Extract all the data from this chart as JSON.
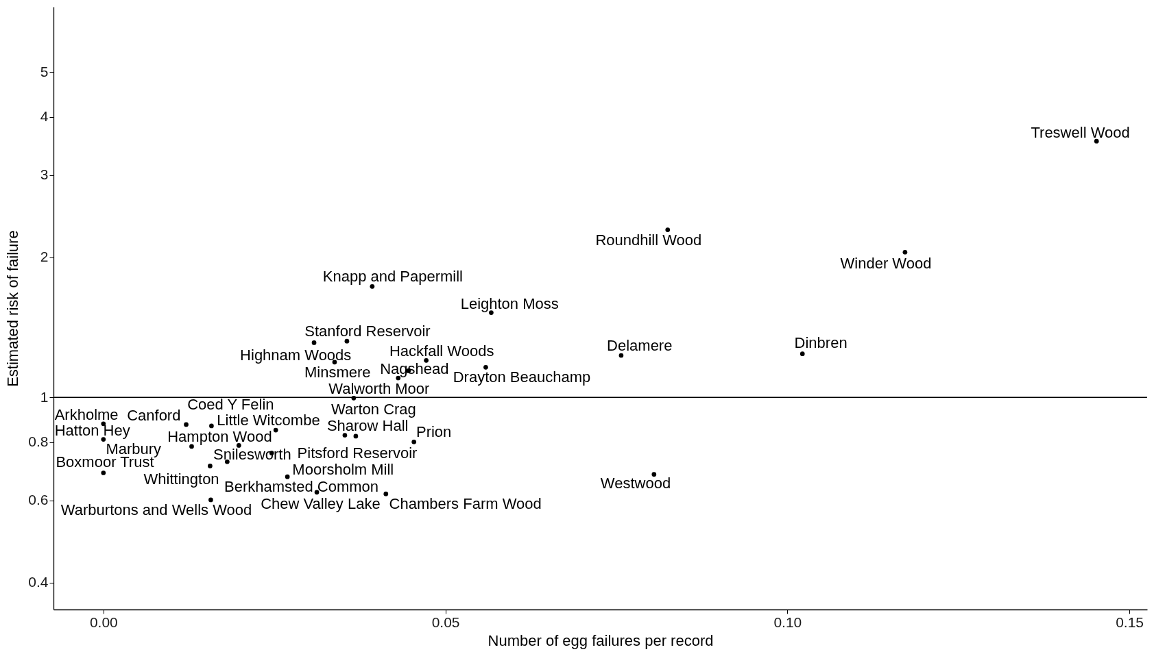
{
  "chart_data": {
    "type": "scatter",
    "xlabel": "Number of egg failures per record",
    "ylabel": "Estimated risk of failure",
    "log": true,
    "grid": false,
    "xlim": [
      -0.0073,
      0.1526
    ],
    "ylim": [
      0.35,
      6.9
    ],
    "xticks": [
      {
        "value": 0,
        "label": "0.00"
      },
      0.05,
      {
        "value": 0.1,
        "label": "0.10"
      },
      {
        "value": 0.15,
        "label": "0.15"
      }
    ],
    "yticks": [
      0.4,
      0.6,
      0.8,
      1,
      2,
      3,
      4,
      5
    ],
    "ref_lines": [
      {
        "axis": "y",
        "value": 1,
        "color": "#000000"
      }
    ],
    "series": [
      {
        "color": "#000000",
        "x": [
          0.1452,
          0.0825,
          0.1172,
          0.0393,
          0.0567,
          0.0356,
          0.0308,
          0.0338,
          0.0472,
          0.0446,
          0.0431,
          0.0559,
          0.0757,
          0.1022,
          0.0366,
          0.0,
          0.0121,
          0.0158,
          0.0252,
          0.0353,
          0.0,
          0.0198,
          0.0454,
          0.0129,
          0.0369,
          0.0181,
          0.0,
          0.0246,
          0.0156,
          0.0805,
          0.0269,
          0.0312,
          0.0413,
          0.0157
        ],
        "values": [
          3.55,
          2.29,
          2.05,
          1.73,
          1.52,
          1.32,
          1.31,
          1.19,
          1.2,
          1.14,
          1.1,
          1.16,
          1.23,
          1.24,
          0.996,
          0.877,
          0.874,
          0.868,
          0.85,
          0.829,
          0.812,
          0.788,
          0.802,
          0.784,
          0.825,
          0.727,
          0.688,
          0.759,
          0.712,
          0.683,
          0.675,
          0.625,
          0.62,
          0.602
        ]
      }
    ],
    "annotations": [
      {
        "text": "Treswell Wood",
        "x": 0.1452,
        "y": 3.55
      },
      {
        "text": "Roundhill Wood",
        "x": 0.0825,
        "y": 2.29
      },
      {
        "text": "Winder Wood",
        "x": 0.1172,
        "y": 2.05
      },
      {
        "text": "Knapp and Papermill",
        "x": 0.0393,
        "y": 1.73
      },
      {
        "text": "Leighton Moss",
        "x": 0.0567,
        "y": 1.52
      },
      {
        "text": "Stanford Reservoir",
        "x": 0.0356,
        "y": 1.32
      },
      {
        "text": "Highnam Woods",
        "x": 0.0308,
        "y": 1.31
      },
      {
        "text": "Minsmere",
        "x": 0.0338,
        "y": 1.19
      },
      {
        "text": "Hackfall Woods",
        "x": 0.0472,
        "y": 1.2
      },
      {
        "text": "Nagshead",
        "x": 0.0446,
        "y": 1.14
      },
      {
        "text": "Walworth Moor",
        "x": 0.0431,
        "y": 1.1
      },
      {
        "text": "Drayton Beauchamp",
        "x": 0.0559,
        "y": 1.16
      },
      {
        "text": "Delamere",
        "x": 0.0757,
        "y": 1.23
      },
      {
        "text": "Dinbren",
        "x": 0.1022,
        "y": 1.24
      },
      {
        "text": "Warton Crag",
        "x": 0.0366,
        "y": 0.996
      },
      {
        "text": "Arkholme",
        "x": 0.0,
        "y": 0.877
      },
      {
        "text": "Canford",
        "x": 0.0121,
        "y": 0.874
      },
      {
        "text": "Coed Y Felin",
        "x": 0.0158,
        "y": 0.868
      },
      {
        "text": "Little Witcombe",
        "x": 0.0252,
        "y": 0.85
      },
      {
        "text": "Sharow Hall",
        "x": 0.0353,
        "y": 0.829
      },
      {
        "text": "Hatton Hey",
        "x": 0.0,
        "y": 0.812
      },
      {
        "text": "Hampton Wood",
        "x": 0.0198,
        "y": 0.788
      },
      {
        "text": "Prion",
        "x": 0.0454,
        "y": 0.802
      },
      {
        "text": "Marbury",
        "x": 0.0129,
        "y": 0.784
      },
      {
        "text": "Pitsford Reservoir",
        "x": 0.0369,
        "y": 0.825
      },
      {
        "text": "Snilesworth",
        "x": 0.0181,
        "y": 0.727
      },
      {
        "text": "Boxmoor Trust",
        "x": 0.0,
        "y": 0.688
      },
      {
        "text": "Moorsholm Mill",
        "x": 0.0246,
        "y": 0.759
      },
      {
        "text": "Whittington",
        "x": 0.0156,
        "y": 0.712
      },
      {
        "text": "Westwood",
        "x": 0.0805,
        "y": 0.683
      },
      {
        "text": "Berkhamsted Common",
        "x": 0.0269,
        "y": 0.675
      },
      {
        "text": "Chew Valley Lake",
        "x": 0.0312,
        "y": 0.625
      },
      {
        "text": "Chambers Farm Wood",
        "x": 0.0413,
        "y": 0.62
      },
      {
        "text": "Warburtons and Wells Wood",
        "x": 0.0157,
        "y": 0.602
      }
    ]
  }
}
